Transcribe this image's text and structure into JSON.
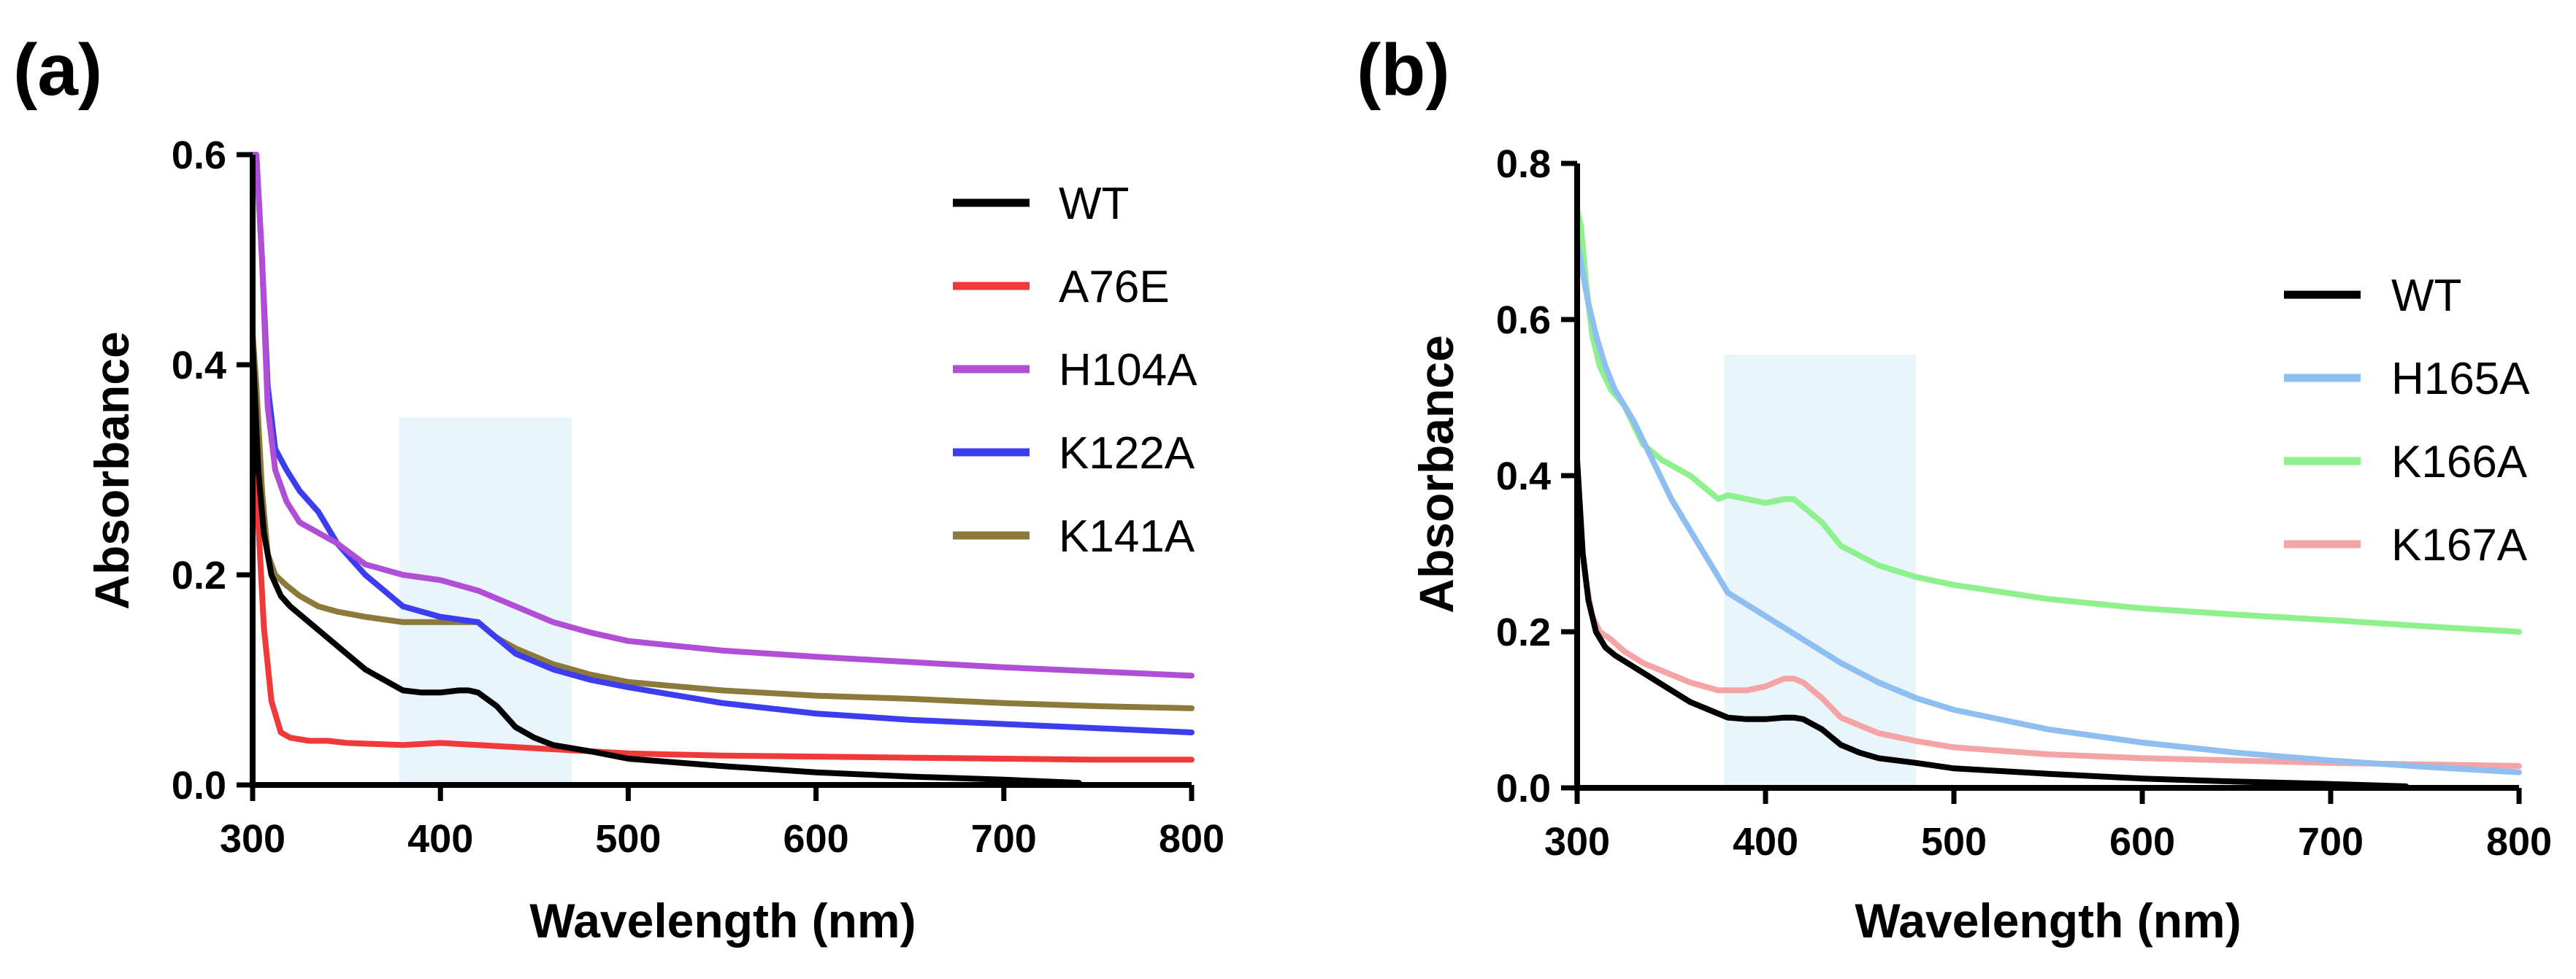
{
  "chart_data": [
    {
      "type": "line",
      "panel_label": "(a)",
      "xlabel": "Wavelength (nm)",
      "ylabel": "Absorbance",
      "xlim": [
        300,
        800
      ],
      "ylim": [
        0,
        0.6
      ],
      "xticks": [
        300,
        400,
        500,
        600,
        700,
        800
      ],
      "yticks": [
        0.0,
        0.2,
        0.4,
        0.6
      ],
      "ytick_labels": [
        "0.0",
        "0.2",
        "0.4",
        "0.6"
      ],
      "shaded_region": {
        "x": [
          378,
          470
        ],
        "y": [
          0,
          0.35
        ],
        "color": "#e3f2fb"
      },
      "legend_position": "top-right",
      "series": [
        {
          "name": "WT",
          "color": "#000000",
          "x": [
            300,
            303,
            306,
            310,
            315,
            320,
            330,
            340,
            350,
            360,
            370,
            380,
            390,
            400,
            410,
            415,
            420,
            430,
            440,
            450,
            460,
            480,
            500,
            550,
            600,
            650,
            700,
            740
          ],
          "y": [
            0.42,
            0.3,
            0.24,
            0.2,
            0.18,
            0.17,
            0.155,
            0.14,
            0.125,
            0.11,
            0.1,
            0.09,
            0.088,
            0.088,
            0.09,
            0.09,
            0.088,
            0.075,
            0.055,
            0.045,
            0.038,
            0.032,
            0.025,
            0.018,
            0.012,
            0.008,
            0.005,
            0.002
          ]
        },
        {
          "name": "A76E",
          "color": "#f03a3a",
          "x": [
            300,
            303,
            306,
            310,
            315,
            320,
            330,
            340,
            350,
            380,
            400,
            420,
            450,
            470,
            500,
            550,
            600,
            650,
            700,
            750,
            800
          ],
          "y": [
            0.37,
            0.25,
            0.15,
            0.08,
            0.05,
            0.045,
            0.042,
            0.042,
            0.04,
            0.038,
            0.04,
            0.038,
            0.035,
            0.033,
            0.03,
            0.028,
            0.027,
            0.026,
            0.025,
            0.024,
            0.024
          ]
        },
        {
          "name": "H104A",
          "color": "#b04ed6",
          "x": [
            300,
            302,
            305,
            308,
            312,
            318,
            325,
            335,
            345,
            360,
            380,
            400,
            420,
            440,
            460,
            480,
            500,
            550,
            600,
            650,
            700,
            750,
            800
          ],
          "y": [
            0.6,
            0.6,
            0.5,
            0.36,
            0.3,
            0.27,
            0.25,
            0.24,
            0.23,
            0.21,
            0.2,
            0.195,
            0.185,
            0.17,
            0.155,
            0.145,
            0.137,
            0.128,
            0.122,
            0.117,
            0.112,
            0.108,
            0.104
          ]
        },
        {
          "name": "K122A",
          "color": "#3d3df0",
          "x": [
            300,
            302,
            305,
            308,
            312,
            318,
            325,
            335,
            345,
            360,
            380,
            400,
            420,
            430,
            440,
            460,
            480,
            500,
            550,
            600,
            650,
            700,
            750,
            800
          ],
          "y": [
            0.6,
            0.6,
            0.5,
            0.38,
            0.32,
            0.3,
            0.28,
            0.26,
            0.23,
            0.2,
            0.17,
            0.16,
            0.155,
            0.14,
            0.125,
            0.11,
            0.1,
            0.093,
            0.078,
            0.068,
            0.062,
            0.058,
            0.054,
            0.05
          ]
        },
        {
          "name": "K141A",
          "color": "#8b7a3a",
          "x": [
            300,
            302,
            305,
            308,
            312,
            318,
            325,
            335,
            345,
            360,
            380,
            400,
            420,
            430,
            440,
            460,
            480,
            500,
            550,
            600,
            650,
            700,
            750,
            800
          ],
          "y": [
            0.43,
            0.38,
            0.28,
            0.22,
            0.2,
            0.19,
            0.18,
            0.17,
            0.165,
            0.16,
            0.155,
            0.155,
            0.155,
            0.14,
            0.13,
            0.115,
            0.105,
            0.098,
            0.09,
            0.085,
            0.082,
            0.078,
            0.075,
            0.073
          ]
        }
      ]
    },
    {
      "type": "line",
      "panel_label": "(b)",
      "xlabel": "Wavelength (nm)",
      "ylabel": "Absorbance",
      "xlim": [
        300,
        800
      ],
      "ylim": [
        0,
        0.8
      ],
      "xticks": [
        300,
        400,
        500,
        600,
        700,
        800
      ],
      "yticks": [
        0.0,
        0.2,
        0.4,
        0.6,
        0.8
      ],
      "ytick_labels": [
        "0.0",
        "0.2",
        "0.4",
        "0.6",
        "0.8"
      ],
      "shaded_region": {
        "x": [
          378,
          480
        ],
        "y": [
          0,
          0.555
        ],
        "color": "#e3f2fb"
      },
      "legend_position": "right",
      "series": [
        {
          "name": "WT",
          "color": "#000000",
          "x": [
            300,
            303,
            306,
            310,
            315,
            320,
            330,
            340,
            350,
            360,
            370,
            380,
            390,
            400,
            410,
            415,
            420,
            430,
            440,
            450,
            460,
            480,
            500,
            550,
            600,
            650,
            700,
            740
          ],
          "y": [
            0.42,
            0.3,
            0.24,
            0.2,
            0.18,
            0.17,
            0.155,
            0.14,
            0.125,
            0.11,
            0.1,
            0.09,
            0.088,
            0.088,
            0.09,
            0.09,
            0.088,
            0.075,
            0.055,
            0.045,
            0.038,
            0.032,
            0.025,
            0.018,
            0.012,
            0.008,
            0.005,
            0.002
          ]
        },
        {
          "name": "H165A",
          "color": "#8fbef0",
          "x": [
            300,
            303,
            306,
            310,
            315,
            320,
            330,
            340,
            350,
            360,
            370,
            380,
            400,
            420,
            440,
            460,
            480,
            500,
            550,
            600,
            650,
            700,
            750,
            800
          ],
          "y": [
            0.7,
            0.66,
            0.62,
            0.58,
            0.54,
            0.51,
            0.47,
            0.42,
            0.37,
            0.33,
            0.29,
            0.25,
            0.22,
            0.19,
            0.16,
            0.135,
            0.115,
            0.1,
            0.075,
            0.058,
            0.045,
            0.035,
            0.027,
            0.02
          ]
        },
        {
          "name": "K166A",
          "color": "#8ef18e",
          "x": [
            300,
            302,
            305,
            308,
            312,
            318,
            325,
            335,
            345,
            360,
            375,
            380,
            390,
            400,
            410,
            415,
            420,
            430,
            440,
            460,
            480,
            500,
            550,
            600,
            650,
            700,
            750,
            800
          ],
          "y": [
            0.74,
            0.72,
            0.64,
            0.58,
            0.54,
            0.51,
            0.49,
            0.44,
            0.42,
            0.4,
            0.37,
            0.375,
            0.37,
            0.365,
            0.37,
            0.37,
            0.36,
            0.34,
            0.31,
            0.285,
            0.27,
            0.26,
            0.242,
            0.23,
            0.222,
            0.215,
            0.207,
            0.2
          ]
        },
        {
          "name": "K167A",
          "color": "#f4a4a4",
          "x": [
            300,
            302,
            305,
            308,
            312,
            318,
            325,
            335,
            345,
            360,
            375,
            380,
            390,
            400,
            410,
            415,
            420,
            430,
            440,
            460,
            480,
            500,
            550,
            600,
            650,
            700,
            750,
            800
          ],
          "y": [
            0.35,
            0.32,
            0.26,
            0.22,
            0.2,
            0.19,
            0.175,
            0.16,
            0.15,
            0.135,
            0.125,
            0.125,
            0.125,
            0.13,
            0.14,
            0.14,
            0.135,
            0.115,
            0.09,
            0.07,
            0.06,
            0.052,
            0.043,
            0.038,
            0.035,
            0.032,
            0.03,
            0.028
          ]
        }
      ]
    }
  ]
}
